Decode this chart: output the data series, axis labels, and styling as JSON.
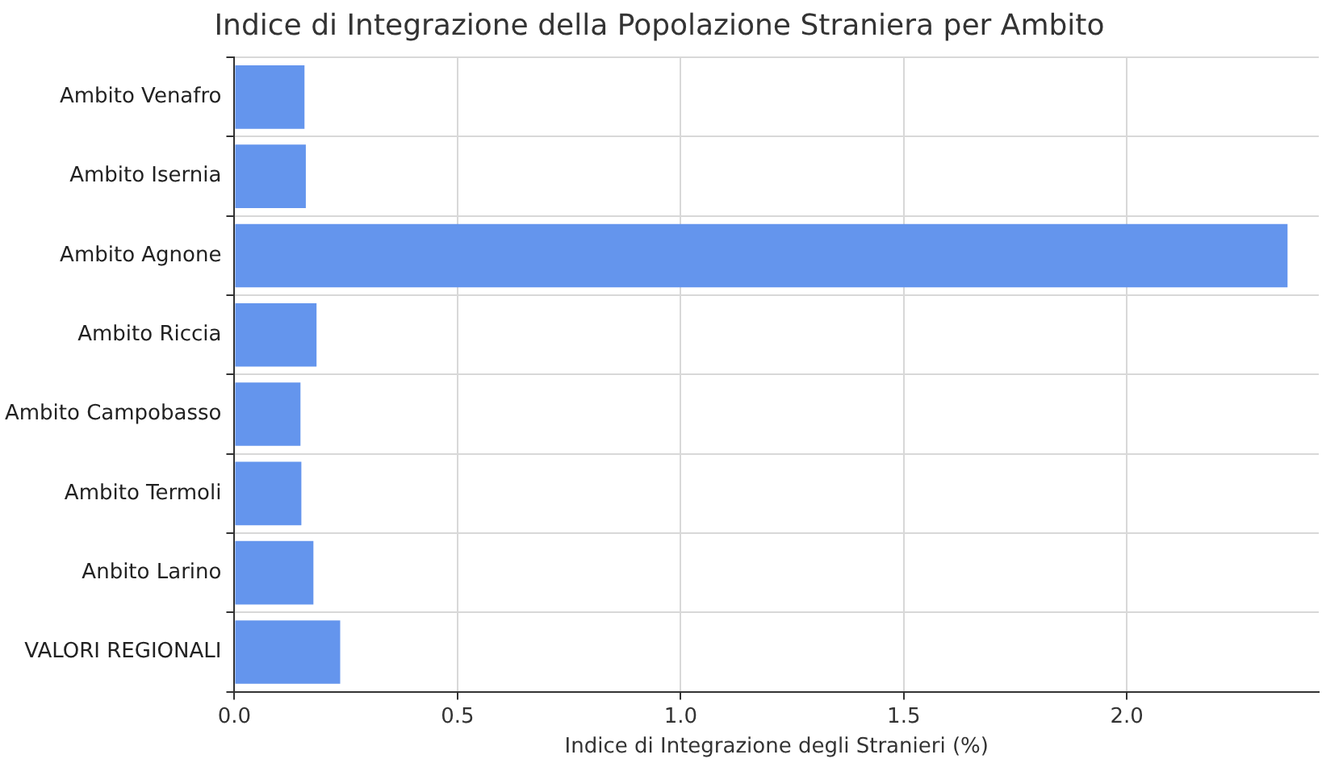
{
  "chart_data": {
    "type": "bar",
    "orientation": "horizontal",
    "title": "Indice di Integrazione della Popolazione Straniera per Ambito",
    "xlabel": "Indice di Integrazione degli Stranieri (%)",
    "categories": [
      "Ambito Venafro",
      "Ambito Isernia",
      "Ambito Agnone",
      "Ambito Riccia",
      "Ambito Campobasso",
      "Ambito Termoli",
      "Anbito Larino",
      "VALORI REGIONALI"
    ],
    "values": [
      0.157,
      0.16,
      2.36,
      0.184,
      0.148,
      0.15,
      0.177,
      0.237
    ],
    "color": "#6495ed",
    "xlim": [
      0,
      2.43
    ],
    "xticks": [
      {
        "value": 0,
        "label": "0.0"
      },
      {
        "value": 0.5,
        "label": "0.5"
      },
      {
        "value": 1,
        "label": "1.0"
      },
      {
        "value": 1.5,
        "label": "1.5"
      },
      {
        "value": 2,
        "label": "2.0"
      }
    ],
    "grid": true,
    "legend": false
  }
}
